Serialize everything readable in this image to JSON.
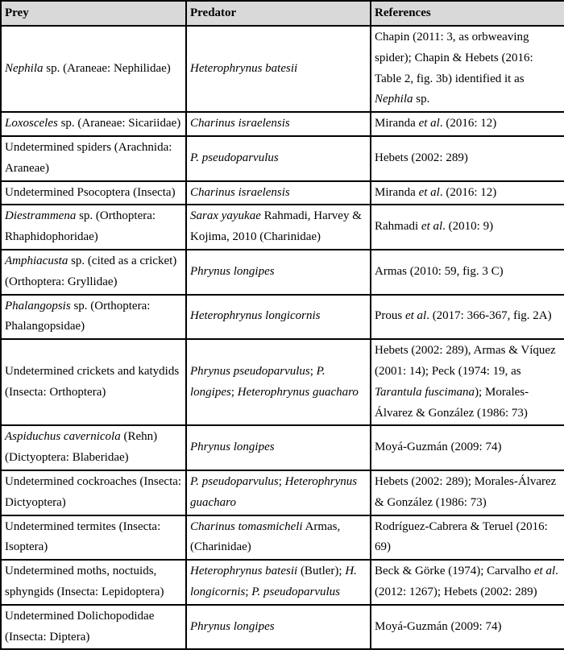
{
  "colors": {
    "header_background": "#d9d9d9",
    "border": "#000000",
    "text": "#000000"
  },
  "table": {
    "headers": [
      "Prey",
      "Predator",
      "References"
    ],
    "rows": [
      {
        "prey": [
          {
            "t": "Nephila",
            "i": true
          },
          {
            "t": " sp. (Araneae: Nephilidae)",
            "i": false
          }
        ],
        "predator": [
          {
            "t": "Heterophrynus batesii",
            "i": true
          }
        ],
        "references": [
          {
            "t": "Chapin (2011: 3, as orbweaving spider); Chapin & Hebets (2016: Table 2, fig. 3b) identified it as ",
            "i": false
          },
          {
            "t": "Nephila",
            "i": true
          },
          {
            "t": " sp.",
            "i": false
          }
        ]
      },
      {
        "prey": [
          {
            "t": "Loxosceles",
            "i": true
          },
          {
            "t": " sp. (Araneae: Sicariidae)",
            "i": false
          }
        ],
        "predator": [
          {
            "t": "Charinus israelensis",
            "i": true
          }
        ],
        "references": [
          {
            "t": "Miranda ",
            "i": false
          },
          {
            "t": "et al",
            "i": true
          },
          {
            "t": ". (2016: 12)",
            "i": false
          }
        ]
      },
      {
        "prey": [
          {
            "t": "Undetermined spiders (Arachnida: Araneae)",
            "i": false
          }
        ],
        "predator": [
          {
            "t": "P. pseudoparvulus",
            "i": true
          }
        ],
        "references": [
          {
            "t": "Hebets (2002: 289)",
            "i": false
          }
        ]
      },
      {
        "prey": [
          {
            "t": "Undetermined Psocoptera (Insecta)",
            "i": false
          }
        ],
        "predator": [
          {
            "t": "Charinus israelensis",
            "i": true
          }
        ],
        "references": [
          {
            "t": "Miranda ",
            "i": false
          },
          {
            "t": "et al",
            "i": true
          },
          {
            "t": ". (2016: 12)",
            "i": false
          }
        ]
      },
      {
        "prey": [
          {
            "t": "Diestrammena",
            "i": true
          },
          {
            "t": " sp. (Orthoptera: Rhaphidophoridae)",
            "i": false
          }
        ],
        "predator": [
          {
            "t": "Sarax yayukae",
            "i": true
          },
          {
            "t": " Rahmadi, Harvey & Kojima, 2010 (Charinidae)",
            "i": false
          }
        ],
        "references": [
          {
            "t": "Rahmadi ",
            "i": false
          },
          {
            "t": "et al",
            "i": true
          },
          {
            "t": ". (2010: 9)",
            "i": false
          }
        ]
      },
      {
        "prey": [
          {
            "t": "Amphiacusta",
            "i": true
          },
          {
            "t": " sp. (cited as a cricket) (Orthoptera: Gryllidae)",
            "i": false
          }
        ],
        "predator": [
          {
            "t": "Phrynus longipes",
            "i": true
          }
        ],
        "references": [
          {
            "t": "Armas (2010: 59, fig. 3 C)",
            "i": false
          }
        ]
      },
      {
        "prey": [
          {
            "t": "Phalangopsis",
            "i": true
          },
          {
            "t": " sp. (Orthoptera: Phalangopsidae)",
            "i": false
          }
        ],
        "predator": [
          {
            "t": "Heterophrynus longicornis",
            "i": true
          }
        ],
        "references": [
          {
            "t": "Prous ",
            "i": false
          },
          {
            "t": "et al",
            "i": true
          },
          {
            "t": ". (2017: 366-367, fig. 2A)",
            "i": false
          }
        ]
      },
      {
        "prey": [
          {
            "t": "Undetermined crickets and katydids (Insecta: Orthoptera)",
            "i": false
          }
        ],
        "predator": [
          {
            "t": "Phrynus pseudoparvulus",
            "i": true
          },
          {
            "t": "; ",
            "i": false
          },
          {
            "t": "P. longipes",
            "i": true
          },
          {
            "t": "; ",
            "i": false
          },
          {
            "t": "Heterophrynus guacharo",
            "i": true
          }
        ],
        "references": [
          {
            "t": "Hebets (2002: 289), Armas & Víquez (2001: 14); Peck (1974: 19, as ",
            "i": false
          },
          {
            "t": "Tarantula fuscimana",
            "i": true
          },
          {
            "t": "); Morales-Álvarez & González (1986: 73)",
            "i": false
          }
        ]
      },
      {
        "prey": [
          {
            "t": "Aspiduchus cavernicola",
            "i": true
          },
          {
            "t": " (Rehn) (Dictyoptera: Blaberidae)",
            "i": false
          }
        ],
        "predator": [
          {
            "t": "Phrynus longipes",
            "i": true
          }
        ],
        "references": [
          {
            "t": "Moyá-Guzmán (2009: 74)",
            "i": false
          }
        ]
      },
      {
        "prey": [
          {
            "t": "Undetermined cockroaches (Insecta: Dictyoptera)",
            "i": false
          }
        ],
        "predator": [
          {
            "t": "P. pseudoparvulus",
            "i": true
          },
          {
            "t": "; ",
            "i": false
          },
          {
            "t": "Heterophrynus guacharo",
            "i": true
          }
        ],
        "references": [
          {
            "t": "Hebets (2002: 289); Morales-Álvarez & González (1986: 73)",
            "i": false
          }
        ]
      },
      {
        "prey": [
          {
            "t": "Undetermined termites (Insecta: Isoptera)",
            "i": false
          }
        ],
        "predator": [
          {
            "t": "Charinus tomasmicheli",
            "i": true
          },
          {
            "t": " Armas, (Charinidae)",
            "i": false
          }
        ],
        "references": [
          {
            "t": "Rodríguez-Cabrera & Teruel (2016: 69)",
            "i": false
          }
        ]
      },
      {
        "prey": [
          {
            "t": "Undetermined moths, noctuids, sphyngids (Insecta: Lepidoptera)",
            "i": false
          }
        ],
        "predator": [
          {
            "t": "Heterophrynus batesii",
            "i": true
          },
          {
            "t": " (Butler); ",
            "i": false
          },
          {
            "t": "H. longicornis",
            "i": true
          },
          {
            "t": "; ",
            "i": false
          },
          {
            "t": "P. pseudoparvulus",
            "i": true
          }
        ],
        "references": [
          {
            "t": "Beck & Görke (1974); Carvalho ",
            "i": false
          },
          {
            "t": "et al",
            "i": true
          },
          {
            "t": ". (2012: 1267); Hebets (2002: 289)",
            "i": false
          }
        ]
      },
      {
        "prey": [
          {
            "t": "Undetermined Dolichopodidae (Insecta: Diptera)",
            "i": false
          }
        ],
        "predator": [
          {
            "t": "Phrynus longipes",
            "i": true
          }
        ],
        "references": [
          {
            "t": "Moyá-Guzmán (2009: 74)",
            "i": false
          }
        ]
      }
    ]
  }
}
